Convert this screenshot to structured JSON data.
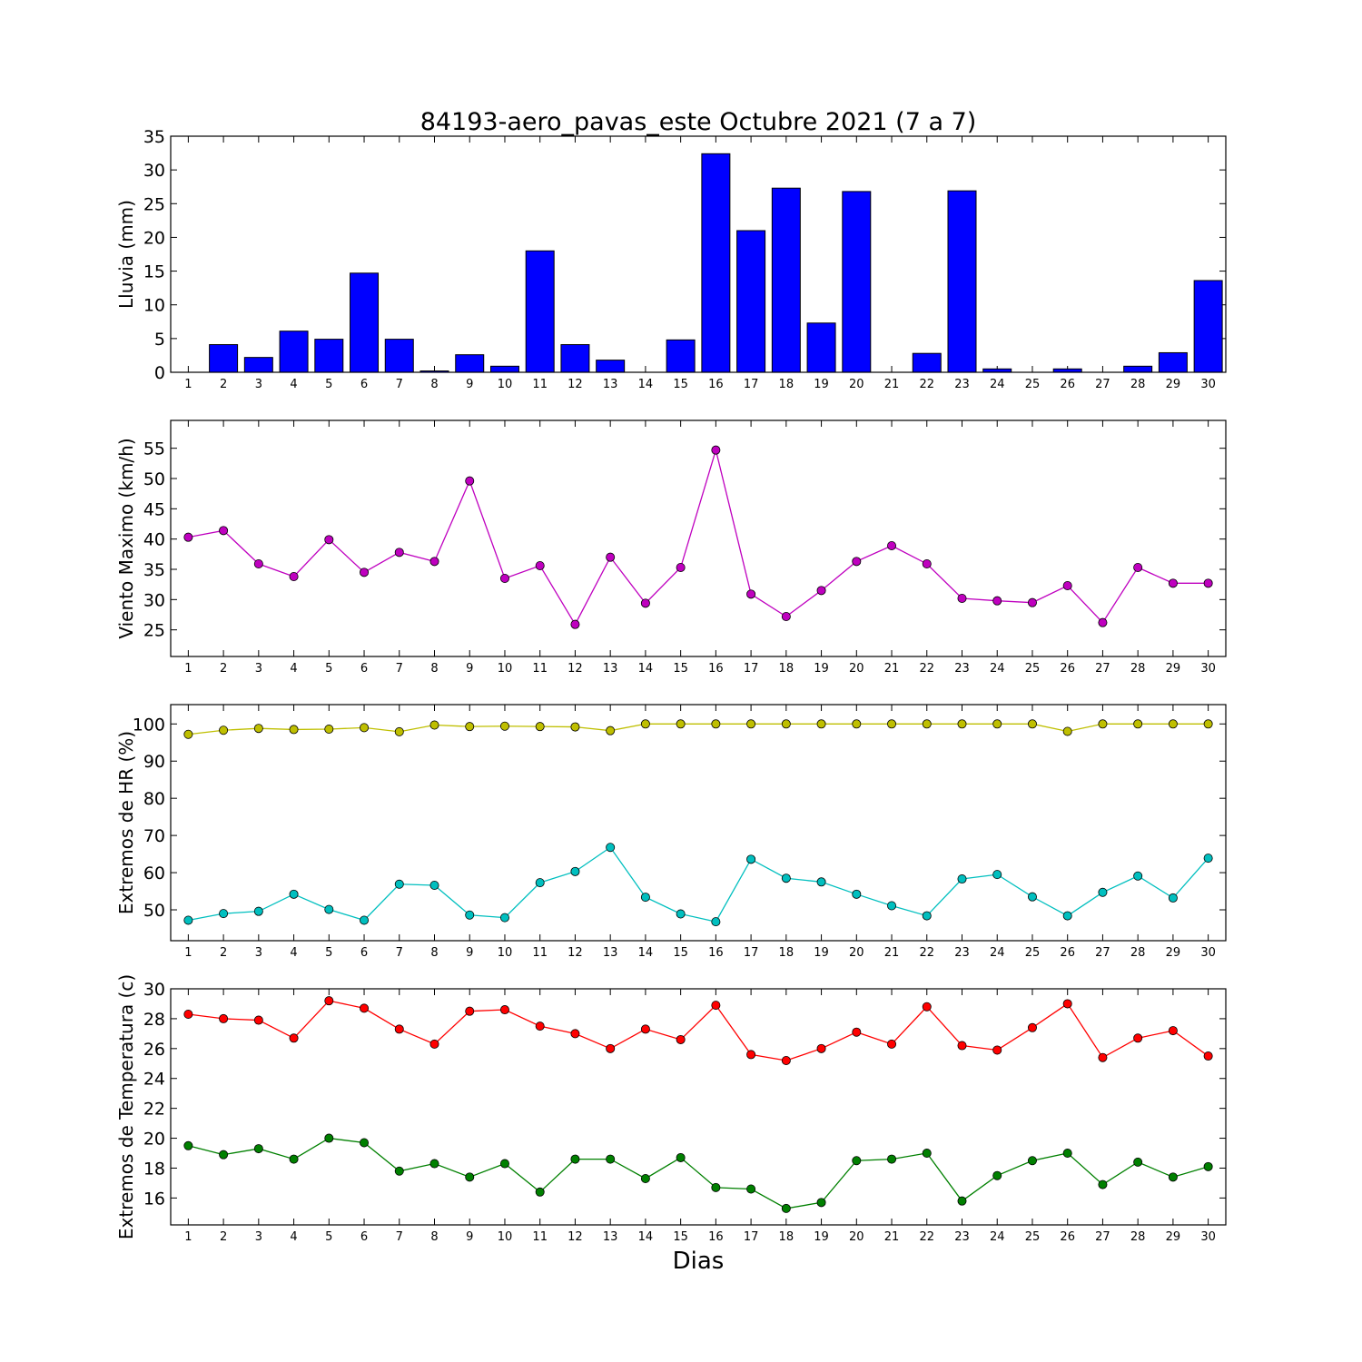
{
  "title": "84193-aero_pavas_este Octubre 2021  (7 a 7)",
  "xlabel": "Dias",
  "x": [
    1,
    2,
    3,
    4,
    5,
    6,
    7,
    8,
    9,
    10,
    11,
    12,
    13,
    14,
    15,
    16,
    17,
    18,
    19,
    20,
    21,
    22,
    23,
    24,
    25,
    26,
    27,
    28,
    29,
    30
  ],
  "chart_data": [
    {
      "type": "bar",
      "ylabel": "Lluvia (mm)",
      "ylim": [
        0,
        35
      ],
      "yticks": [
        0,
        5,
        10,
        15,
        20,
        25,
        30,
        35
      ],
      "series": [
        {
          "color": "#0000ff",
          "values": [
            0,
            4.1,
            2.2,
            6.1,
            4.9,
            14.7,
            4.9,
            0.2,
            2.6,
            0.9,
            18.0,
            4.1,
            1.8,
            0,
            4.8,
            32.4,
            21.0,
            27.3,
            7.3,
            26.8,
            0,
            2.8,
            26.9,
            0.5,
            0,
            0.5,
            0,
            0.9,
            2.9,
            13.6
          ]
        }
      ]
    },
    {
      "type": "line",
      "ylabel": "Viento Maximo (km/h)",
      "ylim": [
        20.6,
        59.6
      ],
      "yticks": [
        25,
        30,
        35,
        40,
        45,
        50,
        55
      ],
      "series": [
        {
          "color": "#bf00bf",
          "values": [
            40.3,
            41.4,
            35.9,
            33.8,
            39.9,
            34.5,
            37.8,
            36.3,
            49.6,
            33.5,
            35.6,
            25.9,
            37.0,
            29.4,
            35.3,
            54.7,
            30.9,
            27.2,
            31.5,
            36.3,
            38.9,
            35.9,
            30.2,
            29.8,
            29.5,
            32.3,
            26.2,
            35.3,
            32.7,
            32.7
          ]
        }
      ]
    },
    {
      "type": "line",
      "ylabel": "Extremos de HR (%)",
      "ylim": [
        41.7,
        105.2
      ],
      "yticks": [
        50,
        60,
        70,
        80,
        90,
        100
      ],
      "series": [
        {
          "color": "#bfbf00",
          "values": [
            97.2,
            98.3,
            98.8,
            98.5,
            98.6,
            99.0,
            97.9,
            99.7,
            99.3,
            99.4,
            99.3,
            99.2,
            98.2,
            100,
            100,
            100,
            100,
            100,
            100,
            100,
            100,
            100,
            100,
            100,
            100,
            98.0,
            100,
            100,
            100,
            100
          ]
        },
        {
          "color": "#00bfbf",
          "values": [
            47.2,
            49.0,
            49.6,
            54.2,
            50.1,
            47.2,
            56.9,
            56.6,
            48.6,
            47.9,
            57.3,
            60.3,
            66.8,
            53.4,
            48.9,
            46.8,
            63.6,
            58.5,
            57.5,
            54.2,
            51.1,
            48.4,
            58.3,
            59.5,
            53.5,
            48.4,
            54.7,
            59.1,
            53.2,
            63.9
          ]
        }
      ]
    },
    {
      "type": "line",
      "ylabel": "Extremos de Temperatura (c)",
      "ylim": [
        14.2,
        30
      ],
      "yticks": [
        16,
        18,
        20,
        22,
        24,
        26,
        28,
        30
      ],
      "series": [
        {
          "color": "#ff0000",
          "values": [
            28.3,
            28.0,
            27.9,
            26.7,
            29.2,
            28.7,
            27.3,
            26.3,
            28.5,
            28.6,
            27.5,
            27.0,
            26.0,
            27.3,
            26.6,
            28.9,
            25.6,
            25.2,
            26.0,
            27.1,
            26.3,
            28.8,
            26.2,
            25.9,
            27.4,
            29.0,
            25.4,
            26.7,
            27.2,
            25.5
          ]
        },
        {
          "color": "#008000",
          "values": [
            19.5,
            18.9,
            19.3,
            18.6,
            20.0,
            19.7,
            17.8,
            18.3,
            17.4,
            18.3,
            16.4,
            18.6,
            18.6,
            17.3,
            18.7,
            16.7,
            16.6,
            15.3,
            15.7,
            18.5,
            18.6,
            19.0,
            15.8,
            17.5,
            18.5,
            19.0,
            16.9,
            18.4,
            17.4,
            18.1
          ]
        }
      ]
    }
  ]
}
